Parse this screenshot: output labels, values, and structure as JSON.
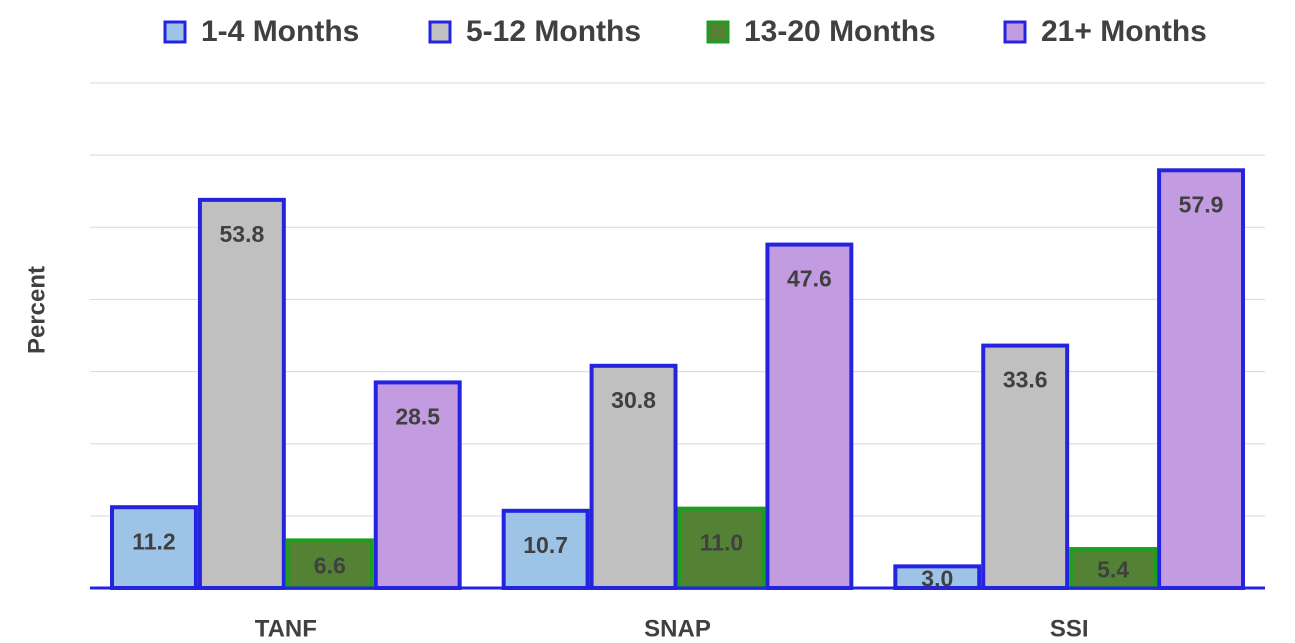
{
  "chart_data": {
    "type": "bar",
    "y_label": "Percent",
    "categories": [
      "TANF",
      "SNAP",
      "SSI"
    ],
    "series": [
      {
        "name": "1-4 Months",
        "color": "#9dc3e6",
        "edgecolor": "#2424e0",
        "values": [
          11.2,
          10.7,
          3.0
        ],
        "value_labels": [
          "11.2",
          "10.7",
          "3.0"
        ]
      },
      {
        "name": "5-12 Months",
        "color": "#c0c0c0",
        "edgecolor": "#2424e0",
        "values": [
          53.8,
          30.8,
          33.6
        ],
        "value_labels": [
          "53.8",
          "30.8",
          "33.6"
        ]
      },
      {
        "name": "13-20 Months",
        "color": "#548235",
        "edgecolor": "#1e9e1e",
        "values": [
          6.6,
          11.0,
          5.4
        ],
        "value_labels": [
          "6.6",
          "11.0",
          "5.4"
        ]
      },
      {
        "name": "21+ Months",
        "color": "#c39be0",
        "edgecolor": "#2424e0",
        "values": [
          28.5,
          47.6,
          57.9
        ],
        "value_labels": [
          "28.5",
          "47.6",
          "57.9"
        ]
      }
    ],
    "ylim": [
      0,
      70
    ],
    "yticks": [
      0,
      10,
      20,
      30,
      40,
      50,
      60,
      70
    ],
    "grid": true,
    "legend": "top"
  }
}
